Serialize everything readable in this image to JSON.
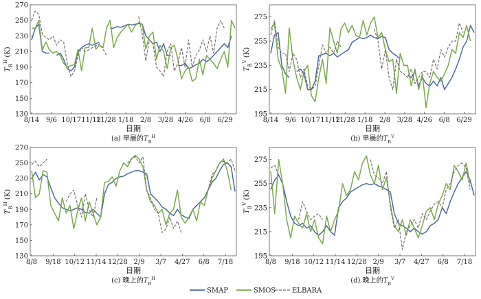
{
  "colors": {
    "SMAP": "#4a6a9a",
    "SMOS": "#7aa84a",
    "ELBARA": "#7a6e6e"
  },
  "legend": {
    "items": [
      {
        "name": "SMAP",
        "style": "solid"
      },
      {
        "name": "SMOS",
        "style": "solid"
      },
      {
        "name": "ELBARA",
        "style": "dashed"
      }
    ]
  },
  "chart_data": [
    {
      "type": "line",
      "caption": "(a) 早晨的",
      "caption_var": "T",
      "caption_sub": "B",
      "caption_sup": "H",
      "ylabel_var": "T",
      "ylabel_sub": "B",
      "ylabel_sup": "H",
      "ylabel_unit": "(K)",
      "xlabel": "日期",
      "ylim": [
        130,
        270
      ],
      "yticks": [
        130,
        150,
        170,
        190,
        210,
        230,
        250,
        270
      ],
      "xticks": [
        "8/14",
        "9/6",
        "10/17",
        "11/12",
        "11/28",
        "1/18",
        "2/8",
        "3/28",
        "4/26",
        "6/8",
        "6/29"
      ],
      "xtick_pos": [
        0,
        8,
        16,
        24,
        30,
        38,
        46,
        54,
        62,
        70,
        78
      ],
      "series": [
        {
          "name": "SMAP",
          "y": [
            225,
            240,
            245,
            210,
            208,
            208,
            null,
            205,
            208,
            200,
            188,
            185,
            190,
            210,
            215,
            218,
            220,
            218,
            220,
            222,
            null,
            null,
            240,
            240,
            242,
            241,
            243,
            245,
            244,
            245,
            246,
            245,
            230,
            225,
            220,
            222,
            210,
            220,
            205,
            205,
            null,
            192,
            192,
            195,
            188,
            190,
            193,
            195,
            200,
            197,
            200,
            205,
            210,
            215,
            220,
            215,
            230
          ]
        },
        {
          "name": "SMOS",
          "y": [
            240,
            240,
            250,
            212,
            222,
            212,
            208,
            210,
            205,
            195,
            190,
            192,
            193,
            213,
            185,
            215,
            215,
            240,
            213,
            218,
            215,
            240,
            250,
            215,
            228,
            235,
            240,
            245,
            235,
            243,
            247,
            245,
            213,
            230,
            235,
            200,
            218,
            210,
            188,
            215,
            218,
            200,
            175,
            185,
            190,
            172,
            175,
            200,
            180,
            205,
            200,
            195,
            188,
            200,
            210,
            190,
            250,
            240
          ]
        },
        {
          "name": "ELBARA",
          "y": [
            250,
            262,
            258,
            232,
            228,
            225,
            230,
            218,
            225,
            222,
            195,
            178,
            185,
            205,
            215,
            210,
            212,
            215,
            217,
            220,
            213,
            205,
            null,
            null,
            null,
            null,
            null,
            null,
            null,
            null,
            255,
            232,
            198,
            225,
            220,
            190,
            185,
            178,
            210,
            220,
            185,
            195,
            215,
            190,
            225,
            190,
            205,
            212,
            225,
            210,
            230,
            208,
            240,
            250,
            240
          ]
        }
      ]
    },
    {
      "type": "line",
      "caption": "(b) 早晨的",
      "caption_var": "T",
      "caption_sub": "B",
      "caption_sup": "V",
      "ylabel_var": "T",
      "ylabel_sub": "B",
      "ylabel_sup": "V",
      "ylabel_unit": "(K)",
      "xlabel": "日期",
      "ylim": [
        195,
        285
      ],
      "yticks": [
        195,
        215,
        235,
        255,
        275
      ],
      "xticks": [
        "8/14",
        "9/6",
        "10/17",
        "11/12",
        "11/28",
        "1/18",
        "2/8",
        "3/28",
        "4/26",
        "6/8",
        "6/29"
      ],
      "xtick_pos": [
        0,
        8,
        16,
        24,
        30,
        38,
        46,
        54,
        62,
        70,
        78
      ],
      "series": [
        {
          "name": "SMAP",
          "y": [
            245,
            260,
            262,
            235,
            228,
            225,
            null,
            230,
            232,
            228,
            215,
            215,
            222,
            243,
            244,
            245,
            243,
            245,
            242,
            244,
            246,
            248,
            254,
            256,
            258,
            257,
            258,
            260,
            258,
            257,
            259,
            258,
            248,
            245,
            243,
            240,
            null,
            227,
            225,
            230,
            218,
            225,
            220,
            218,
            222,
            218,
            225,
            215,
            220,
            225,
            232,
            240,
            250,
            255,
            268,
            262
          ]
        },
        {
          "name": "SMOS",
          "y": [
            265,
            270,
            240,
            232,
            212,
            266,
            240,
            225,
            215,
            230,
            235,
            210,
            205,
            225,
            240,
            220,
            266,
            255,
            245,
            265,
            270,
            262,
            268,
            260,
            258,
            272,
            260,
            270,
            275,
            258,
            262,
            248,
            238,
            240,
            212,
            245,
            235,
            235,
            218,
            232,
            215,
            228,
            200,
            220,
            230,
            225,
            222,
            228,
            235,
            248,
            245,
            262,
            258,
            268,
            255
          ]
        },
        {
          "name": "ELBARA",
          "y": [
            260,
            272,
            250,
            245,
            245,
            230,
            245,
            240,
            225,
            232,
            218,
            215,
            218,
            235,
            252,
            245,
            250,
            245,
            255,
            250,
            null,
            null,
            null,
            null,
            null,
            null,
            null,
            null,
            265,
            255,
            232,
            248,
            225,
            215,
            240,
            230,
            228,
            225,
            232,
            220,
            225,
            230,
            230,
            225,
            240,
            232,
            248,
            242,
            250,
            255,
            255,
            270,
            262
          ]
        }
      ]
    },
    {
      "type": "line",
      "caption": "(c) 晚上的",
      "caption_var": "T",
      "caption_sub": "B",
      "caption_sup": "H",
      "ylabel_var": "T",
      "ylabel_sub": "B",
      "ylabel_sup": "H",
      "ylabel_unit": "(K)",
      "xlabel": "日期",
      "ylim": [
        130,
        270
      ],
      "yticks": [
        130,
        150,
        170,
        190,
        210,
        230,
        250,
        270
      ],
      "xticks": [
        "8/8",
        "9/18",
        "10/12",
        "11/14",
        "12/28",
        "2/9",
        "3/7",
        "4/27",
        "6/8",
        "7/18"
      ],
      "xtick_pos": [
        0,
        9,
        18,
        27,
        36,
        45,
        54,
        63,
        72,
        81
      ],
      "series": [
        {
          "name": "SMAP",
          "y": [
            230,
            238,
            228,
            235,
            232,
            218,
            205,
            198,
            192,
            190,
            188,
            190,
            192,
            190,
            186,
            185,
            190,
            185,
            180,
            210,
            222,
            225,
            230,
            232,
            233,
            236,
            238,
            240,
            240,
            238,
            236,
            210,
            205,
            200,
            193,
            190,
            185,
            182,
            190,
            183,
            180,
            178,
            190,
            195,
            200,
            205,
            215,
            225,
            230,
            240,
            248,
            250,
            245,
            213
          ]
        },
        {
          "name": "SMOS",
          "y": [
            240,
            205,
            210,
            240,
            238,
            195,
            185,
            175,
            205,
            185,
            195,
            165,
            188,
            205,
            175,
            200,
            185,
            170,
            180,
            225,
            226,
            232,
            220,
            240,
            250,
            245,
            255,
            260,
            255,
            245,
            215,
            200,
            195,
            185,
            190,
            170,
            185,
            190,
            215,
            180,
            172,
            180,
            190,
            175,
            200,
            195,
            215,
            230,
            240,
            250,
            255,
            240,
            215
          ]
        },
        {
          "name": "ELBARA",
          "y": [
            248,
            252,
            245,
            250,
            255,
            null,
            null,
            null,
            null,
            200,
            210,
            215,
            195,
            180,
            210,
            190,
            180,
            205,
            null,
            null,
            null,
            null,
            null,
            null,
            null,
            250,
            255,
            258,
            250,
            258,
            215,
            205,
            190,
            185,
            160,
            165,
            180,
            165,
            175,
            160,
            null,
            null,
            null,
            null,
            null,
            205,
            215,
            235,
            240,
            250,
            252,
            250,
            255,
            240
          ]
        }
      ]
    },
    {
      "type": "line",
      "caption": "(d) 晚上的",
      "caption_var": "T",
      "caption_sub": "B",
      "caption_sup": "V",
      "ylabel_var": "T",
      "ylabel_sub": "B",
      "ylabel_sup": "V",
      "ylabel_unit": "(K)",
      "xlabel": "日期",
      "ylim": [
        195,
        285
      ],
      "yticks": [
        195,
        215,
        235,
        255,
        275
      ],
      "xticks": [
        "8/8",
        "9/18",
        "10/12",
        "11/14",
        "12/28",
        "2/9",
        "3/7",
        "4/27",
        "6/8",
        "7/18"
      ],
      "xtick_pos": [
        0,
        9,
        18,
        27,
        36,
        45,
        54,
        63,
        72,
        81
      ],
      "series": [
        {
          "name": "SMAP",
          "y": [
            250,
            258,
            262,
            255,
            240,
            228,
            222,
            220,
            222,
            218,
            220,
            215,
            212,
            215,
            220,
            215,
            212,
            235,
            240,
            243,
            248,
            250,
            252,
            254,
            255,
            254,
            255,
            253,
            252,
            250,
            248,
            230,
            222,
            220,
            218,
            215,
            218,
            215,
            213,
            215,
            220,
            222,
            225,
            235,
            230,
            240,
            248,
            255,
            260,
            265,
            258,
            245
          ]
        },
        {
          "name": "SMOS",
          "y": [
            265,
            230,
            275,
            255,
            225,
            210,
            228,
            222,
            218,
            230,
            215,
            225,
            210,
            205,
            228,
            215,
            225,
            232,
            255,
            245,
            250,
            265,
            258,
            272,
            278,
            262,
            255,
            270,
            250,
            260,
            238,
            220,
            215,
            225,
            212,
            225,
            218,
            210,
            220,
            232,
            235,
            225,
            238,
            245,
            255,
            250,
            270,
            265,
            258,
            272,
            255
          ]
        },
        {
          "name": "ELBARA",
          "y": [
            268,
            270,
            262,
            null,
            null,
            null,
            null,
            225,
            240,
            232,
            225,
            228,
            230,
            225,
            null,
            null,
            null,
            null,
            null,
            null,
            null,
            null,
            null,
            null,
            null,
            275,
            262,
            260,
            255,
            265,
            235,
            218,
            225,
            200,
            215,
            220,
            225,
            218,
            230,
            225,
            232,
            238,
            240,
            235,
            250,
            255,
            265,
            270,
            272,
            268,
            250
          ]
        }
      ]
    }
  ]
}
